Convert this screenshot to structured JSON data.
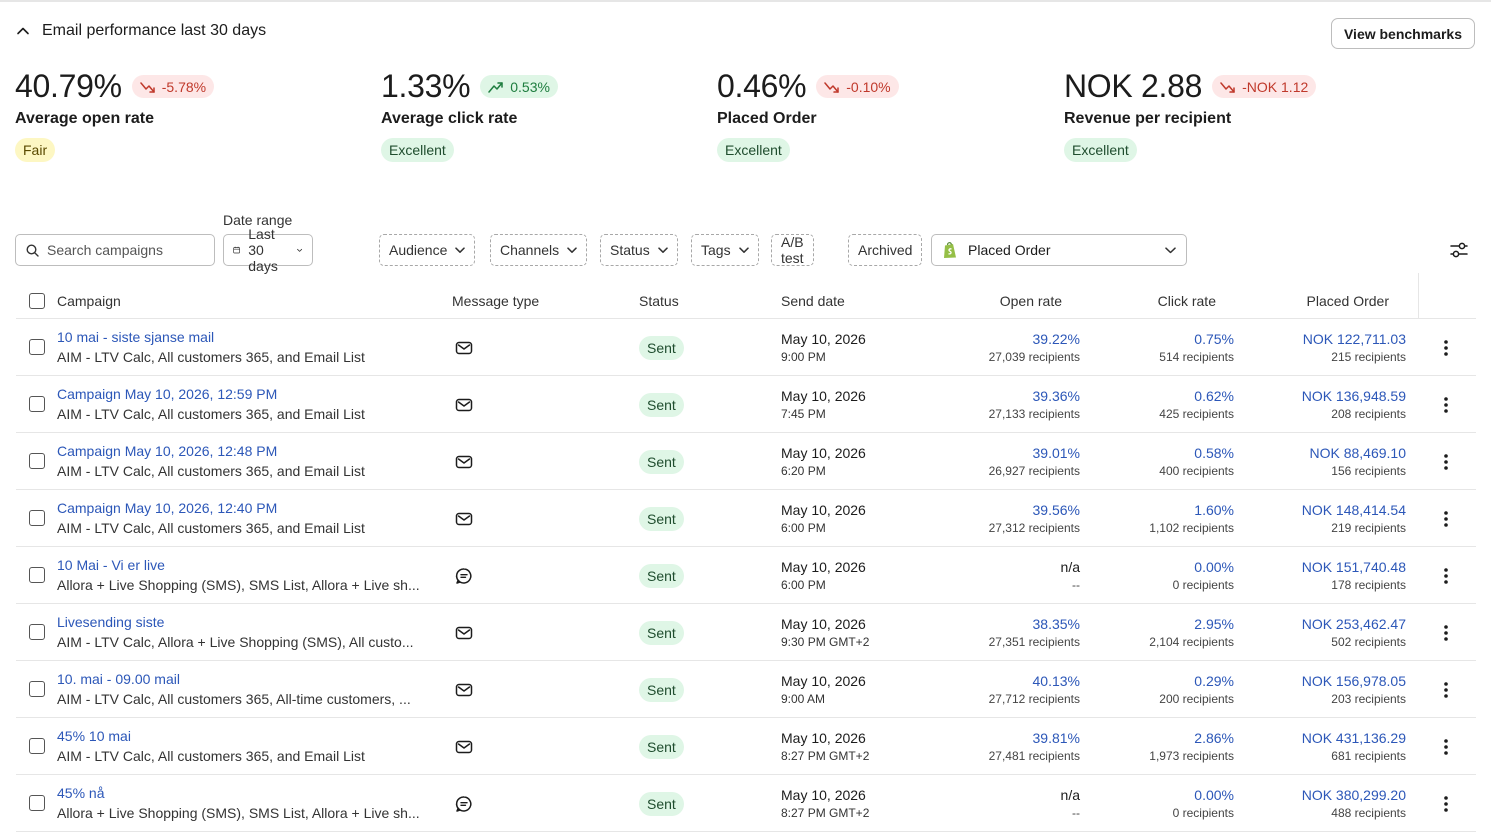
{
  "header": {
    "title": "Email performance last 30 days",
    "benchmarks_label": "View benchmarks"
  },
  "metrics": [
    {
      "value": "40.79%",
      "delta": "-5.78%",
      "trend": "down",
      "label": "Average open rate",
      "rating": "Fair"
    },
    {
      "value": "1.33%",
      "delta": "0.53%",
      "trend": "up",
      "label": "Average click rate",
      "rating": "Excellent"
    },
    {
      "value": "0.46%",
      "delta": "-0.10%",
      "trend": "down",
      "label": "Placed Order",
      "rating": "Excellent"
    },
    {
      "value": "NOK 2.88",
      "delta": "-NOK 1.12",
      "trend": "down",
      "label": "Revenue per recipient",
      "rating": "Excellent"
    }
  ],
  "filters": {
    "search_placeholder": "Search campaigns",
    "date_range_label": "Date range",
    "date_range_value": "Last 30 days",
    "audience": "Audience",
    "channels": "Channels",
    "status": "Status",
    "tags": "Tags",
    "ab_test": "A/B test",
    "archived": "Archived",
    "metric": "Placed Order"
  },
  "columns": {
    "campaign": "Campaign",
    "message_type": "Message type",
    "status": "Status",
    "send_date": "Send date",
    "open_rate": "Open rate",
    "click_rate": "Click rate",
    "placed_order": "Placed Order"
  },
  "rows": [
    {
      "name": "10 mai - siste sjanse mail",
      "audience": "AIM - LTV Calc, All customers 365, and Email List",
      "type": "email",
      "status": "Sent",
      "date": "May 10, 2026",
      "time": "9:00 PM",
      "open_rate": "39.22%",
      "open_sub": "27,039 recipients",
      "click_rate": "0.75%",
      "click_sub": "514 recipients",
      "placed": "NOK 122,711.03",
      "placed_sub": "215 recipients"
    },
    {
      "name": "Campaign May 10, 2026, 12:59 PM",
      "audience": "AIM - LTV Calc, All customers 365, and Email List",
      "type": "email",
      "status": "Sent",
      "date": "May 10, 2026",
      "time": "7:45 PM",
      "open_rate": "39.36%",
      "open_sub": "27,133 recipients",
      "click_rate": "0.62%",
      "click_sub": "425 recipients",
      "placed": "NOK 136,948.59",
      "placed_sub": "208 recipients"
    },
    {
      "name": "Campaign May 10, 2026, 12:48 PM",
      "audience": "AIM - LTV Calc, All customers 365, and Email List",
      "type": "email",
      "status": "Sent",
      "date": "May 10, 2026",
      "time": "6:20 PM",
      "open_rate": "39.01%",
      "open_sub": "26,927 recipients",
      "click_rate": "0.58%",
      "click_sub": "400 recipients",
      "placed": "NOK 88,469.10",
      "placed_sub": "156 recipients"
    },
    {
      "name": "Campaign May 10, 2026, 12:40 PM",
      "audience": "AIM - LTV Calc, All customers 365, and Email List",
      "type": "email",
      "status": "Sent",
      "date": "May 10, 2026",
      "time": "6:00 PM",
      "open_rate": "39.56%",
      "open_sub": "27,312 recipients",
      "click_rate": "1.60%",
      "click_sub": "1,102 recipients",
      "placed": "NOK 148,414.54",
      "placed_sub": "219 recipients"
    },
    {
      "name": "10 Mai - Vi er live",
      "audience": "Allora + Live Shopping (SMS), SMS List, Allora + Live sh...",
      "type": "sms",
      "status": "Sent",
      "date": "May 10, 2026",
      "time": "6:00 PM",
      "open_rate": "n/a",
      "open_sub": "--",
      "click_rate": "0.00%",
      "click_sub": "0 recipients",
      "placed": "NOK 151,740.48",
      "placed_sub": "178 recipients"
    },
    {
      "name": "Livesending siste",
      "audience": "AIM - LTV Calc, Allora + Live Shopping (SMS), All custo...",
      "type": "email",
      "status": "Sent",
      "date": "May 10, 2026",
      "time": "9:30 PM GMT+2",
      "open_rate": "38.35%",
      "open_sub": "27,351 recipients",
      "click_rate": "2.95%",
      "click_sub": "2,104 recipients",
      "placed": "NOK 253,462.47",
      "placed_sub": "502 recipients"
    },
    {
      "name": "10. mai - 09.00 mail",
      "audience": "AIM - LTV Calc, All customers 365, All-time customers, ...",
      "type": "email",
      "status": "Sent",
      "date": "May 10, 2026",
      "time": "9:00 AM",
      "open_rate": "40.13%",
      "open_sub": "27,712 recipients",
      "click_rate": "0.29%",
      "click_sub": "200 recipients",
      "placed": "NOK 156,978.05",
      "placed_sub": "203 recipients"
    },
    {
      "name": "45% 10 mai",
      "audience": "AIM - LTV Calc, All customers 365, and Email List",
      "type": "email",
      "status": "Sent",
      "date": "May 10, 2026",
      "time": "8:27 PM GMT+2",
      "open_rate": "39.81%",
      "open_sub": "27,481 recipients",
      "click_rate": "2.86%",
      "click_sub": "1,973 recipients",
      "placed": "NOK 431,136.29",
      "placed_sub": "681 recipients"
    },
    {
      "name": "45% nå",
      "audience": "Allora + Live Shopping (SMS), SMS List, Allora + Live sh...",
      "type": "sms",
      "status": "Sent",
      "date": "May 10, 2026",
      "time": "8:27 PM GMT+2",
      "open_rate": "n/a",
      "open_sub": "--",
      "click_rate": "0.00%",
      "click_sub": "0 recipients",
      "placed": "NOK 380,299.20",
      "placed_sub": "488 recipients"
    }
  ]
}
